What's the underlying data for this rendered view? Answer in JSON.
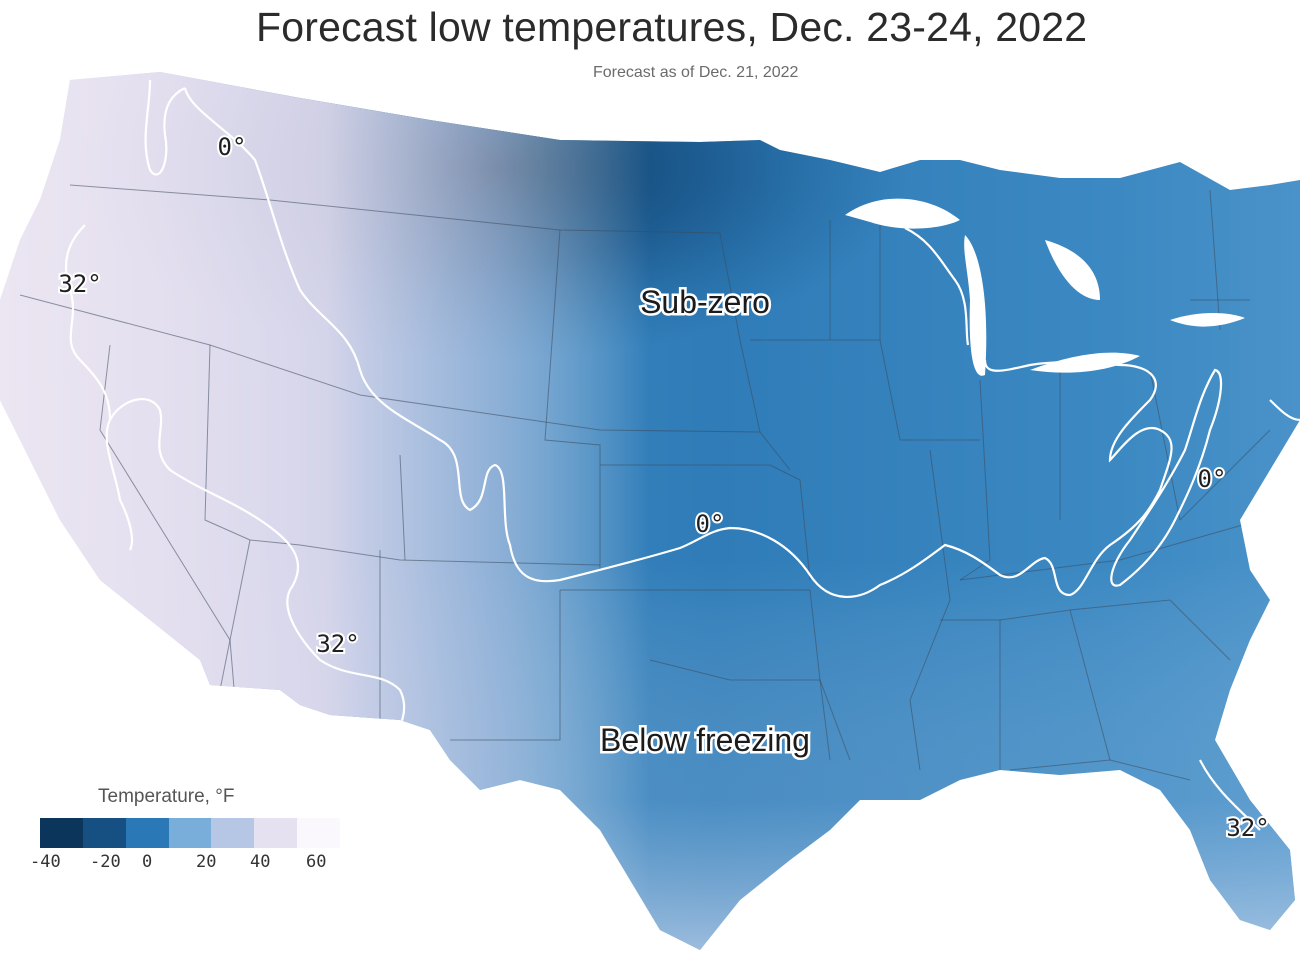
{
  "title": "Forecast low temperatures, Dec. 23-24, 2022",
  "subtitle": "Forecast as of Dec. 21, 2022",
  "map": {
    "region_labels": {
      "sub_zero": "Sub-zero",
      "below_freezing": "Below freezing"
    },
    "contour_labels": {
      "zero_nw": "0°",
      "zero_center": "0°",
      "zero_east": "0°",
      "thirtytwo_west": "32°",
      "thirtytwo_sw": "32°",
      "thirtytwo_fl": "32°"
    },
    "colors": {
      "deep": "#0e3f6b",
      "dark": "#1a5f95",
      "mid": "#2f7cb8",
      "light": "#5f9fd0",
      "pale": "#a9c7e6",
      "lavender": "#ddd8ec",
      "contour": "#ffffff"
    }
  },
  "legend": {
    "title": "Temperature, °F",
    "ticks": [
      "-40",
      "-20",
      "0",
      "20",
      "40",
      "60"
    ],
    "colors": [
      "#0c355c",
      "#164f82",
      "#2a78b5",
      "#79aedb",
      "#b6c7e6",
      "#e6e1f0",
      "#faf8fc"
    ]
  }
}
